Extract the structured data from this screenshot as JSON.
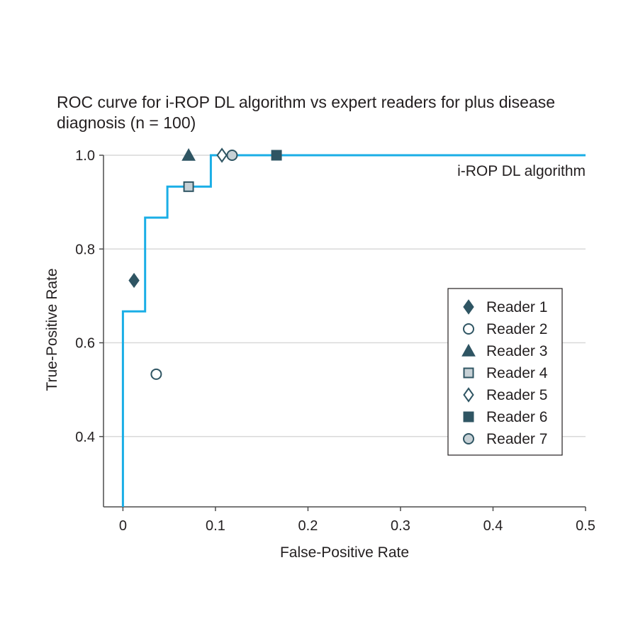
{
  "chart_data": {
    "type": "line",
    "title": "ROC curve for i-ROP DL algorithm vs expert readers for plus disease",
    "subtitle": "diagnosis (n = 100)",
    "xlabel": "False-Positive Rate",
    "ylabel": "True-Positive Rate",
    "xlim": [
      -0.021,
      0.5
    ],
    "ylim": [
      0.25,
      1.0
    ],
    "xticks": [
      0,
      0.1,
      0.2,
      0.3,
      0.4,
      0.5
    ],
    "xtick_labels": [
      "0",
      "0.1",
      "0.2",
      "0.3",
      "0.4",
      "0.5"
    ],
    "yticks": [
      0.4,
      0.6,
      0.8,
      1.0
    ],
    "ytick_labels": [
      "0.4",
      "0.6",
      "0.8",
      "1.0"
    ],
    "grid": "horizontal",
    "curve": {
      "name": "i-ROP DL algorithm",
      "color": "#1aaee6",
      "x": [
        0,
        0,
        0.024,
        0.024,
        0.048,
        0.048,
        0.095,
        0.095,
        0.5
      ],
      "y": [
        0.25,
        0.667,
        0.667,
        0.867,
        0.867,
        0.933,
        0.933,
        1.0,
        1.0
      ]
    },
    "readers": [
      {
        "name": "Reader 1",
        "x": 0.012,
        "y": 0.733,
        "marker": "diamond-filled"
      },
      {
        "name": "Reader 2",
        "x": 0.036,
        "y": 0.533,
        "marker": "circle-open"
      },
      {
        "name": "Reader 3",
        "x": 0.071,
        "y": 1.0,
        "marker": "triangle-filled"
      },
      {
        "name": "Reader 4",
        "x": 0.071,
        "y": 0.933,
        "marker": "square-gray"
      },
      {
        "name": "Reader 5",
        "x": 0.107,
        "y": 1.0,
        "marker": "diamond-open"
      },
      {
        "name": "Reader 6",
        "x": 0.166,
        "y": 1.0,
        "marker": "square-filled"
      },
      {
        "name": "Reader 7",
        "x": 0.118,
        "y": 1.0,
        "marker": "circle-gray"
      }
    ],
    "legend_position": "right-center",
    "colors": {
      "marker_dark": "#2f5563",
      "marker_gray": "#c7d1d6",
      "grid": "#d9d9d9",
      "axis": "#4d4d4d"
    }
  }
}
